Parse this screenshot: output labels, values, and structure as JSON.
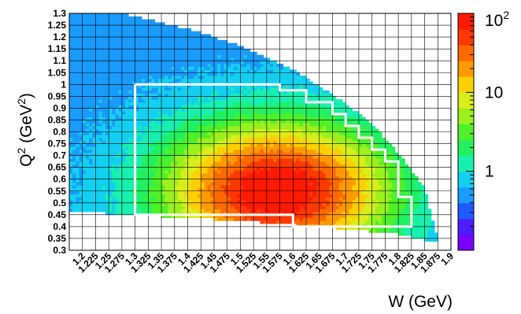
{
  "chart_data": {
    "type": "heatmap",
    "title": "",
    "xlabel": "W (GeV)",
    "ylabel": "Q² (GeV²)",
    "xlim": [
      1.175,
      1.9
    ],
    "ylim": [
      0.3,
      1.3
    ],
    "x_ticks": [
      "1.2",
      "1.225",
      "1.25",
      "1.275",
      "1.3",
      "1.325",
      "1.35",
      "1.375",
      "1.4",
      "1.425",
      "1.45",
      "1.475",
      "1.5",
      "1.525",
      "1.55",
      "1.575",
      "1.6",
      "1.625",
      "1.65",
      "1.675",
      "1.7",
      "1.725",
      "1.75",
      "1.775",
      "1.8",
      "1.825",
      "1.85",
      "1.875",
      "1.9"
    ],
    "y_ticks": [
      "0.3",
      "0.35",
      "0.4",
      "0.45",
      "0.5",
      "0.55",
      "0.6",
      "0.65",
      "0.7",
      "0.75",
      "0.8",
      "0.85",
      "0.9",
      "0.95",
      "1",
      "1.05",
      "1.1",
      "1.15",
      "1.2",
      "1.25",
      "1.3"
    ],
    "grid": true,
    "colorscale": {
      "scale": "log",
      "range": [
        0.1,
        100
      ],
      "labels": [
        "1",
        "10",
        "10²"
      ],
      "label_values": [
        1,
        10,
        100
      ],
      "colors": [
        "#7a00ff",
        "#4b1dff",
        "#1e5bff",
        "#1a9bff",
        "#13d0f0",
        "#18f0b0",
        "#22f060",
        "#4ff02a",
        "#9cf01e",
        "#d8ee1a",
        "#ffd000",
        "#ff9b00",
        "#ff6a00",
        "#ff3800",
        "#ff1a00"
      ]
    },
    "kinematic_region": {
      "w_min": 1.3,
      "w_max": 1.875,
      "q2_min_curve": [
        [
          1.175,
          0.465
        ],
        [
          1.5,
          0.425
        ],
        [
          1.7,
          0.39
        ],
        [
          1.8,
          0.37
        ],
        [
          1.86,
          0.34
        ]
      ],
      "q2_max_curve": [
        [
          1.275,
          1.3
        ],
        [
          1.4,
          1.235
        ],
        [
          1.5,
          1.165
        ],
        [
          1.6,
          1.065
        ],
        [
          1.7,
          0.92
        ],
        [
          1.75,
          0.835
        ],
        [
          1.8,
          0.71
        ],
        [
          1.85,
          0.56
        ],
        [
          1.875,
          0.345
        ]
      ]
    },
    "selection_boundary": [
      [
        1.3,
        1.0
      ],
      [
        1.575,
        1.0
      ],
      [
        1.575,
        0.975
      ],
      [
        1.625,
        0.975
      ],
      [
        1.625,
        0.925
      ],
      [
        1.675,
        0.925
      ],
      [
        1.675,
        0.875
      ],
      [
        1.7,
        0.875
      ],
      [
        1.7,
        0.825
      ],
      [
        1.725,
        0.825
      ],
      [
        1.725,
        0.775
      ],
      [
        1.75,
        0.775
      ],
      [
        1.75,
        0.725
      ],
      [
        1.775,
        0.725
      ],
      [
        1.775,
        0.675
      ],
      [
        1.8,
        0.675
      ],
      [
        1.8,
        0.625
      ],
      [
        1.8,
        0.575
      ],
      [
        1.8,
        0.525
      ],
      [
        1.825,
        0.525
      ],
      [
        1.825,
        0.475
      ],
      [
        1.825,
        0.4
      ],
      [
        1.6,
        0.4
      ],
      [
        1.6,
        0.45
      ],
      [
        1.3,
        0.45
      ],
      [
        1.3,
        1.0
      ]
    ],
    "selection_color": "#ffffff"
  }
}
